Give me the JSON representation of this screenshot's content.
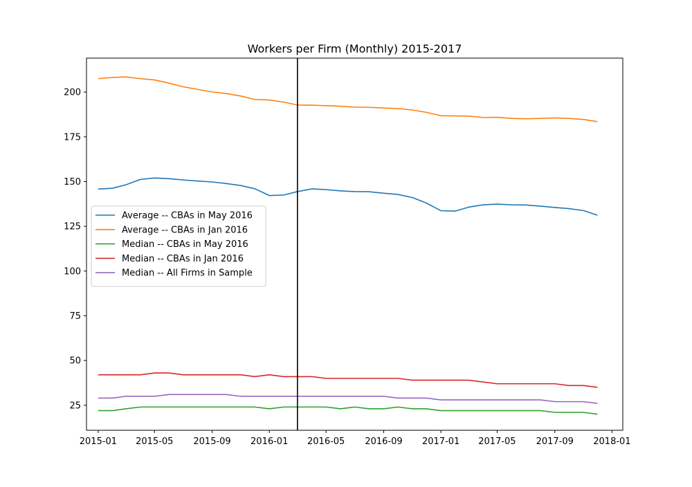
{
  "chart_data": {
    "type": "line",
    "title": "Workers per Firm (Monthly) 2015-2017",
    "xlabel": "",
    "ylabel": "",
    "x": [
      "2015-01",
      "2015-02",
      "2015-03",
      "2015-04",
      "2015-05",
      "2015-06",
      "2015-07",
      "2015-08",
      "2015-09",
      "2015-10",
      "2015-11",
      "2015-12",
      "2016-01",
      "2016-02",
      "2016-03",
      "2016-04",
      "2016-05",
      "2016-06",
      "2016-07",
      "2016-08",
      "2016-09",
      "2016-10",
      "2016-11",
      "2016-12",
      "2017-01",
      "2017-02",
      "2017-03",
      "2017-04",
      "2017-05",
      "2017-06",
      "2017-07",
      "2017-08",
      "2017-09",
      "2017-10",
      "2017-11",
      "2017-12"
    ],
    "xlim": [
      "2014-12-07",
      "2018-01-24"
    ],
    "ylim": [
      11,
      219
    ],
    "xticks": [
      "2015-01",
      "2015-05",
      "2015-09",
      "2016-01",
      "2016-05",
      "2016-09",
      "2017-01",
      "2017-05",
      "2017-09",
      "2018-01"
    ],
    "yticks": [
      25,
      50,
      75,
      100,
      125,
      150,
      175,
      200
    ],
    "vline": "2016-03",
    "grid": false,
    "legend_position": "center-left",
    "series": [
      {
        "name": "Average -- CBAs in May 2016",
        "color": "#1f77b4",
        "values": [
          145.8,
          146.3,
          148.2,
          151.2,
          152.0,
          151.6,
          150.9,
          150.3,
          149.8,
          148.9,
          147.8,
          146.0,
          142.2,
          142.5,
          144.4,
          145.9,
          145.5,
          144.8,
          144.4,
          144.3,
          143.5,
          142.8,
          141.1,
          138.0,
          133.7,
          133.5,
          135.7,
          137.0,
          137.4,
          137.0,
          136.9,
          136.3,
          135.5,
          134.9,
          133.8,
          131.2
        ]
      },
      {
        "name": "Average -- CBAs in Jan 2016",
        "color": "#ff7f0e",
        "values": [
          207.5,
          208.2,
          208.5,
          207.5,
          206.8,
          205.0,
          203.0,
          201.5,
          200.1,
          199.2,
          197.8,
          195.9,
          195.6,
          194.4,
          192.8,
          192.7,
          192.4,
          192.1,
          191.6,
          191.5,
          191.1,
          190.8,
          190.0,
          188.7,
          186.8,
          186.7,
          186.6,
          185.8,
          185.9,
          185.3,
          185.1,
          185.3,
          185.6,
          185.3,
          184.7,
          183.5
        ]
      },
      {
        "name": "Median -- CBAs in May 2016",
        "color": "#2ca02c",
        "values": [
          22,
          22,
          23,
          24,
          24,
          24,
          24,
          24,
          24,
          24,
          24,
          24,
          23,
          24,
          24,
          24,
          24,
          23,
          24,
          23,
          23,
          24,
          23,
          23,
          22,
          22,
          22,
          22,
          22,
          22,
          22,
          22,
          21,
          21,
          21,
          20
        ]
      },
      {
        "name": "Median -- CBAs in Jan 2016",
        "color": "#d62728",
        "values": [
          42,
          42,
          42,
          42,
          43,
          43,
          42,
          42,
          42,
          42,
          42,
          41,
          42,
          41,
          41,
          41,
          40,
          40,
          40,
          40,
          40,
          40,
          39,
          39,
          39,
          39,
          39,
          38,
          37,
          37,
          37,
          37,
          37,
          36,
          36,
          35
        ]
      },
      {
        "name": "Median -- All Firms in Sample",
        "color": "#9467bd",
        "values": [
          29,
          29,
          30,
          30,
          30,
          31,
          31,
          31,
          31,
          31,
          30,
          30,
          30,
          30,
          30,
          30,
          30,
          30,
          30,
          30,
          30,
          29,
          29,
          29,
          28,
          28,
          28,
          28,
          28,
          28,
          28,
          28,
          27,
          27,
          27,
          26
        ]
      }
    ]
  }
}
